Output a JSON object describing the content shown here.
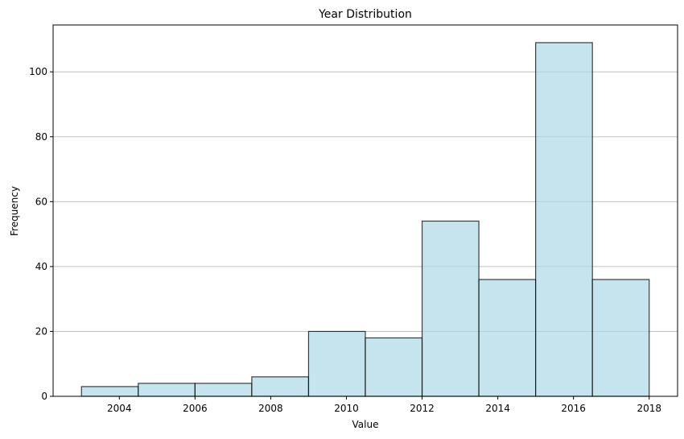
{
  "chart_data": {
    "type": "histogram",
    "title": "Year Distribution",
    "xlabel": "Value",
    "ylabel": "Frequency",
    "xlim": [
      2002.25,
      2018.75
    ],
    "ylim": [
      0,
      114.45
    ],
    "bin_edges": [
      2003,
      2004.5,
      2006,
      2007.5,
      2009,
      2010.5,
      2012,
      2013.5,
      2015,
      2016.5,
      2018
    ],
    "values": [
      3,
      4,
      4,
      6,
      20,
      18,
      54,
      36,
      109,
      36
    ],
    "x_ticks": [
      2004,
      2006,
      2008,
      2010,
      2012,
      2014,
      2016,
      2018
    ],
    "y_ticks": [
      0,
      20,
      40,
      60,
      80,
      100
    ],
    "grid": "y-axis",
    "colors": {
      "bar_fill": "#add8e6",
      "bar_edge": "#000000",
      "grid": "#c0c0c0"
    }
  }
}
